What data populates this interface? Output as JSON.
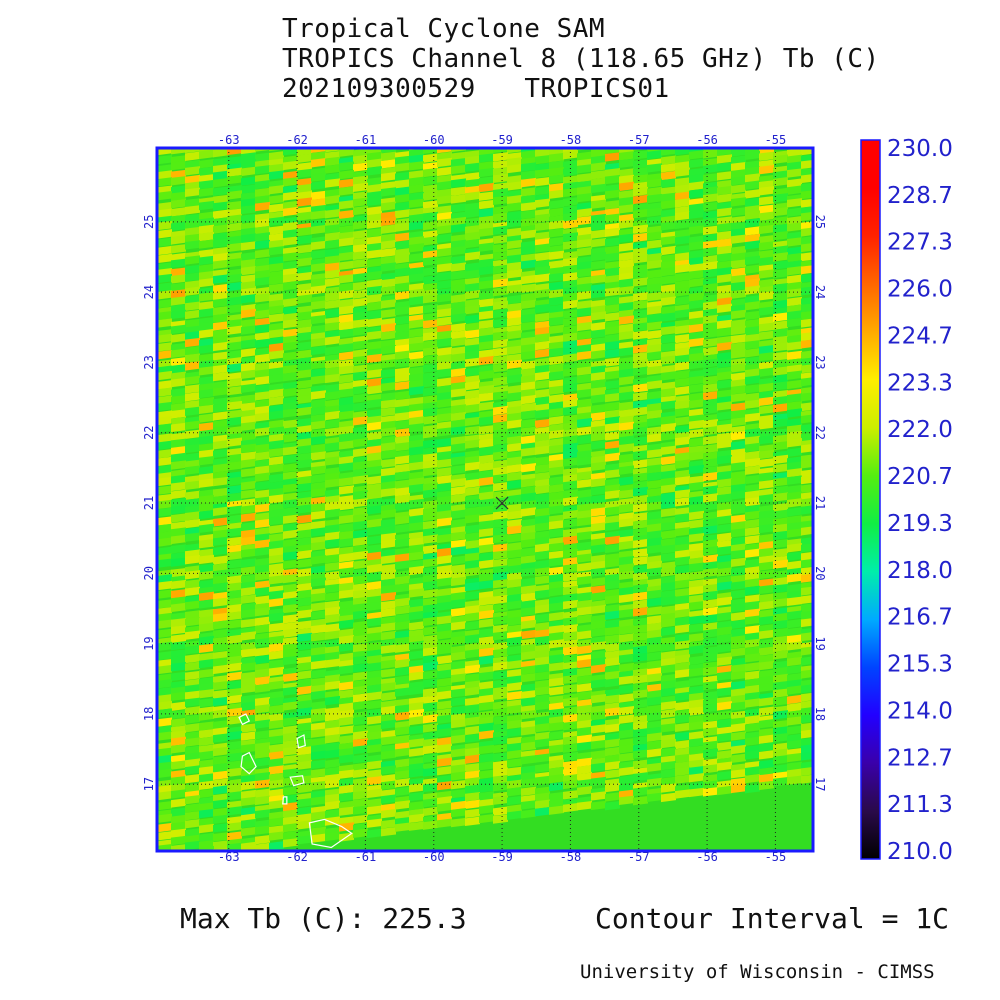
{
  "header": {
    "title": "Tropical Cyclone SAM",
    "channel": "TROPICS Channel 8 (118.65 GHz) Tb (C)",
    "timestamp": "202109300529",
    "satellite": "TROPICS01"
  },
  "map": {
    "lon_ticks": [
      "-63",
      "-62",
      "-61",
      "-60",
      "-59",
      "-58",
      "-57",
      "-56",
      "-55"
    ],
    "lat_ticks": [
      "25",
      "24",
      "23",
      "22",
      "21",
      "20",
      "19",
      "18",
      "17"
    ],
    "lon_range": [
      -64.05,
      -54.45
    ],
    "lat_range": [
      16.05,
      26.05
    ],
    "storm_center": {
      "lon": -59.0,
      "lat": 21.0
    },
    "grid_color": "#222222",
    "frame_color": "#1a1aff",
    "tick_label_color": "#2222cc",
    "coastline_color": "#ffffff",
    "base_field_color": "#33dd22"
  },
  "colorbar": {
    "labels": [
      "230.0",
      "228.7",
      "227.3",
      "226.0",
      "224.7",
      "223.3",
      "222.0",
      "220.7",
      "219.3",
      "218.0",
      "216.7",
      "215.3",
      "214.0",
      "212.7",
      "211.3",
      "210.0"
    ],
    "range": [
      210.0,
      230.0
    ],
    "stops": [
      "#000000",
      "#2a0a4a",
      "#3a00aa",
      "#2200ff",
      "#0044ff",
      "#00aaff",
      "#00eeaa",
      "#11ee44",
      "#55ee11",
      "#ccee00",
      "#ffee00",
      "#ffaa00",
      "#ff6600",
      "#ff2200",
      "#ff0000",
      "#ff0000"
    ]
  },
  "footer": {
    "max_tb": "Max Tb (C): 225.3",
    "contour_interval": "Contour Interval = 1C",
    "credit": "University of Wisconsin - CIMSS"
  }
}
